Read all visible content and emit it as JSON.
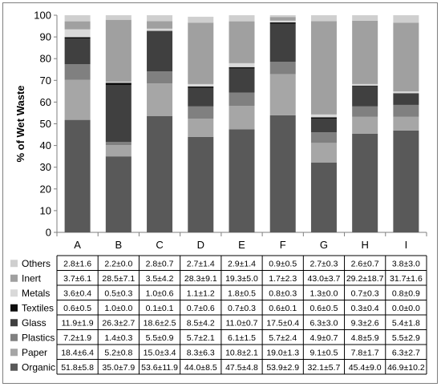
{
  "chart_data": {
    "type": "bar",
    "stacked": true,
    "ylabel": "% of Wet Waste",
    "ylim": [
      0,
      100
    ],
    "yticks": [
      0,
      10,
      20,
      30,
      40,
      50,
      60,
      70,
      80,
      90,
      100
    ],
    "categories": [
      "A",
      "B",
      "C",
      "D",
      "E",
      "F",
      "G",
      "H",
      "I"
    ],
    "legend_placement": "left of data table",
    "grid": false,
    "series": [
      {
        "name": "Organic",
        "color": "#595959",
        "values": [
          51.8,
          35.0,
          53.6,
          44.0,
          47.5,
          53.9,
          32.1,
          45.4,
          46.9
        ],
        "labels": [
          "51.8±5.8",
          "35.0±7.9",
          "53.6±11.9",
          "44.0±8.5",
          "47.5±4.8",
          "53.9±2.9",
          "32.1±5.7",
          "45.4±9.0",
          "46.9±10.2"
        ]
      },
      {
        "name": "Paper",
        "color": "#a6a6a6",
        "values": [
          18.4,
          5.2,
          15.0,
          8.3,
          10.8,
          19.0,
          9.1,
          7.8,
          6.3
        ],
        "labels": [
          "18.4±6.4",
          "5.2±0.8",
          "15.0±3.4",
          "8.3±6.3",
          "10.8±2.1",
          "19.0±1.3",
          "9.1±0.5",
          "7.8±1.7",
          "6.3±2.7"
        ]
      },
      {
        "name": "Plastics",
        "color": "#808080",
        "values": [
          7.2,
          1.4,
          5.5,
          5.7,
          6.1,
          5.7,
          4.9,
          4.8,
          5.5
        ],
        "labels": [
          "7.2±1.9",
          "1.4±0.3",
          "5.5±0.9",
          "5.7±2.1",
          "6.1±1.5",
          "5.7±2.4",
          "4.9±0.7",
          "4.8±5.9",
          "5.5±2.9"
        ]
      },
      {
        "name": "Glass",
        "color": "#404040",
        "values": [
          11.9,
          26.3,
          18.6,
          8.5,
          11.0,
          17.5,
          6.3,
          9.3,
          5.4
        ],
        "labels": [
          "11.9±1.9",
          "26.3±2.7",
          "18.6±2.5",
          "8.5±4.2",
          "11.0±0.7",
          "17.5±0.4",
          "6.3±3.0",
          "9.3±2.6",
          "5.4±1.8"
        ]
      },
      {
        "name": "Textiles",
        "color": "#0d0d0d",
        "values": [
          0.6,
          1.0,
          0.1,
          0.7,
          0.7,
          0.6,
          0.6,
          0.3,
          0.0
        ],
        "labels": [
          "0.6±0.5",
          "1.0±0.0",
          "0.1±0.1",
          "0.7±0.6",
          "0.7±0.3",
          "0.6±0.1",
          "0.6±0.5",
          "0.3±0.4",
          "0.0±0.0"
        ]
      },
      {
        "name": "Metals",
        "color": "#d9d9d9",
        "values": [
          3.6,
          0.5,
          1.0,
          1.1,
          1.8,
          0.8,
          1.3,
          0.7,
          0.8
        ],
        "labels": [
          "3.6±0.4",
          "0.5±0.3",
          "1.0±0.6",
          "1.1±1.2",
          "1.8±0.5",
          "0.8±0.3",
          "1.3±0.0",
          "0.7±0.3",
          "0.8±0.9"
        ]
      },
      {
        "name": "Inert",
        "color": "#a0a0a0",
        "values": [
          3.7,
          28.5,
          3.5,
          28.3,
          19.3,
          1.7,
          43.0,
          29.2,
          31.7
        ],
        "labels": [
          "3.7±6.1",
          "28.5±7.1",
          "3.5±4.2",
          "28.3±9.1",
          "19.3±5.0",
          "1.7±2.3",
          "43.0±3.7",
          "29.2±18.7",
          "31.7±1.6"
        ]
      },
      {
        "name": "Others",
        "color": "#cfcfcf",
        "values": [
          2.8,
          2.2,
          2.8,
          2.7,
          2.9,
          0.9,
          2.7,
          2.6,
          3.8
        ],
        "labels": [
          "2.8±1.6",
          "2.2±0.0",
          "2.8±0.7",
          "2.7±1.4",
          "2.9±1.4",
          "0.9±0.5",
          "2.7±0.3",
          "2.6±0.7",
          "3.8±3.0"
        ]
      }
    ]
  }
}
